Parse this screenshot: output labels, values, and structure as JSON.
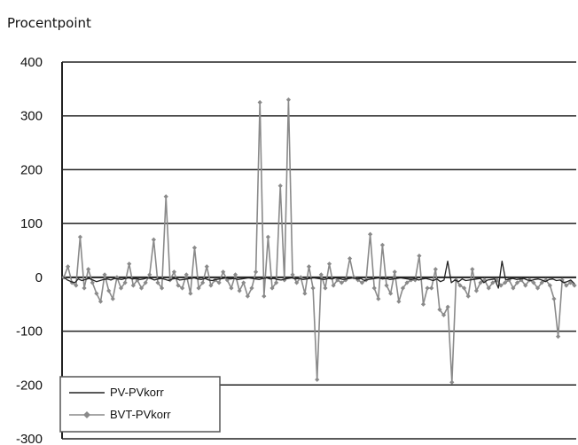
{
  "chart_data": {
    "type": "line",
    "ylabel": "Procentpoint",
    "ylim": [
      -300,
      400
    ],
    "yticks": [
      400,
      300,
      200,
      100,
      0,
      -100,
      -200,
      -300
    ],
    "grid": true,
    "legend_position": "bottom-left",
    "series": [
      {
        "name": "PV-PVkorr",
        "color": "#222222",
        "marker": "none",
        "values": [
          0,
          -5,
          -8,
          -10,
          -3,
          -6,
          -4,
          -2,
          -5,
          -8,
          -6,
          -4,
          -3,
          -5,
          -2,
          -3,
          -4,
          -2,
          -1,
          -3,
          -2,
          -4,
          -3,
          -1,
          -2,
          -5,
          -3,
          -2,
          -4,
          -6,
          -3,
          -2,
          -5,
          -4,
          -3,
          -2,
          -1,
          -3,
          -4,
          -2,
          -5,
          -6,
          -4,
          -3,
          -2,
          -1,
          -3,
          -2,
          -4,
          -3,
          -2,
          -1,
          -2,
          -3,
          -4,
          -2,
          -1,
          -3,
          -2,
          -4,
          -5,
          -3,
          -2,
          -1,
          -3,
          -2,
          -4,
          -3,
          -2,
          -1,
          -2,
          -3,
          -4,
          -2,
          -3,
          -1,
          -2,
          -4,
          -3,
          -2,
          -1,
          -3,
          -2,
          -6,
          -4,
          -3,
          -2,
          -1,
          -3,
          -2,
          -4,
          -3,
          -2,
          -1,
          -2,
          -3,
          -4,
          -2,
          -5,
          -3,
          -2,
          -4,
          -6,
          -3,
          -8,
          -5,
          30,
          -10,
          -5,
          -8,
          -3,
          -6,
          -5,
          -4,
          -3,
          -2,
          -10,
          -5,
          -4,
          -3,
          -20,
          30,
          -5,
          -3,
          -2,
          -4,
          -3,
          -2,
          -5,
          -6,
          -4,
          -3,
          -5,
          -8,
          -4,
          -3,
          -6,
          -5,
          -10,
          -8,
          -5,
          -12
        ]
      },
      {
        "name": "BVT-PVkorr",
        "color": "#8a8a8a",
        "marker": "diamond",
        "values": [
          0,
          20,
          -10,
          -15,
          75,
          -20,
          15,
          -10,
          -30,
          -45,
          5,
          -25,
          -40,
          0,
          -20,
          -10,
          25,
          -15,
          -5,
          -20,
          -10,
          5,
          70,
          -10,
          -20,
          150,
          -5,
          10,
          -15,
          -20,
          5,
          -30,
          55,
          -20,
          -10,
          20,
          -15,
          -5,
          -10,
          10,
          -5,
          -20,
          5,
          -25,
          -10,
          -35,
          -20,
          10,
          325,
          -35,
          75,
          -20,
          -10,
          170,
          -5,
          330,
          5,
          -10,
          0,
          -30,
          20,
          -20,
          -190,
          5,
          -20,
          25,
          -15,
          -5,
          -10,
          -5,
          35,
          0,
          -5,
          -10,
          -5,
          80,
          -20,
          -40,
          60,
          -15,
          -30,
          10,
          -45,
          -20,
          -10,
          -5,
          -5,
          40,
          -50,
          -20,
          -20,
          15,
          -60,
          -70,
          -55,
          -195,
          -5,
          -15,
          -20,
          -35,
          15,
          -25,
          -10,
          -5,
          -20,
          -10,
          -5,
          -15,
          -10,
          -5,
          -20,
          -10,
          -5,
          -15,
          -5,
          -10,
          -20,
          -10,
          -5,
          -15,
          -40,
          -110,
          -5,
          -15,
          -10,
          -15
        ]
      }
    ]
  }
}
